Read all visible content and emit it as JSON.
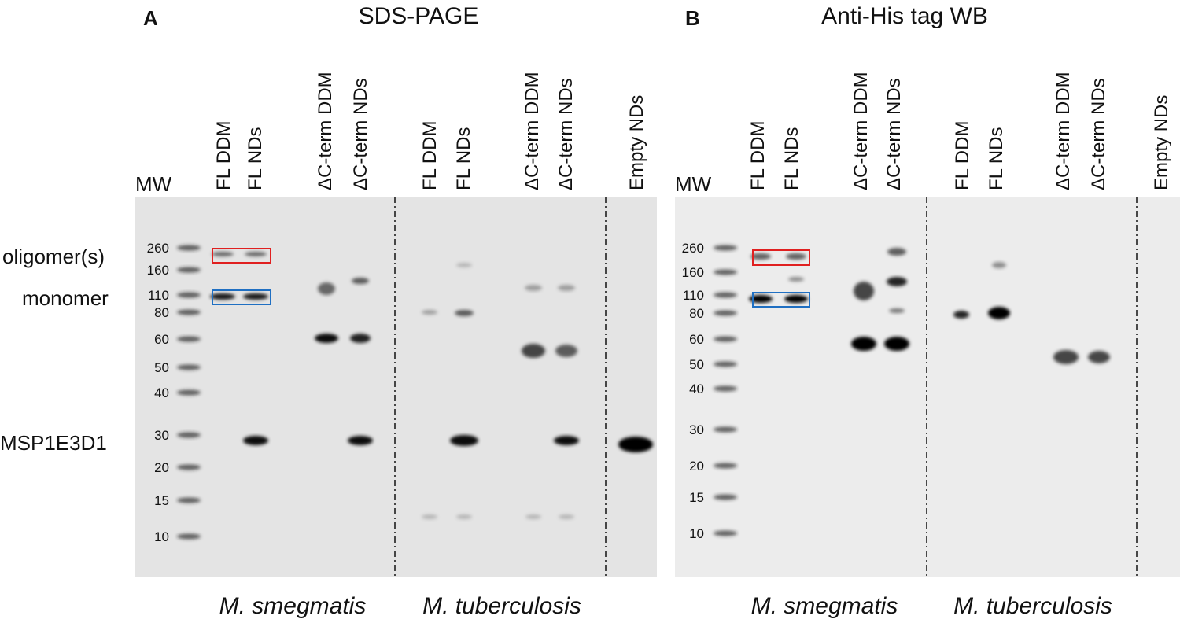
{
  "panels": [
    {
      "letter": "A",
      "title": "SDS-PAGE",
      "mw_label": "MW",
      "lanes": [
        "FL DDM",
        "FL NDs",
        "ΔC-term DDM",
        "ΔC-term NDs",
        "FL DDM",
        "FL NDs",
        "ΔC-term DDM",
        "ΔC-term NDs",
        "Empty NDs"
      ],
      "markers": [
        260,
        160,
        110,
        80,
        60,
        50,
        40,
        30,
        20,
        15,
        10
      ],
      "groups": [
        "M. smegmatis",
        "M. tuberculosis"
      ]
    },
    {
      "letter": "B",
      "title": "Anti-His tag WB",
      "mw_label": "MW",
      "lanes": [
        "FL DDM",
        "FL NDs",
        "ΔC-term DDM",
        "ΔC-term NDs",
        "FL DDM",
        "FL NDs",
        "ΔC-term DDM",
        "ΔC-term NDs",
        "Empty NDs"
      ],
      "markers": [
        260,
        160,
        110,
        80,
        60,
        50,
        40,
        30,
        20,
        15,
        10
      ],
      "groups": [
        "M. smegmatis",
        "M. tuberculosis"
      ]
    }
  ],
  "annotations": [
    "oligomer(s)",
    "monomer",
    "MSP1E3D1"
  ]
}
